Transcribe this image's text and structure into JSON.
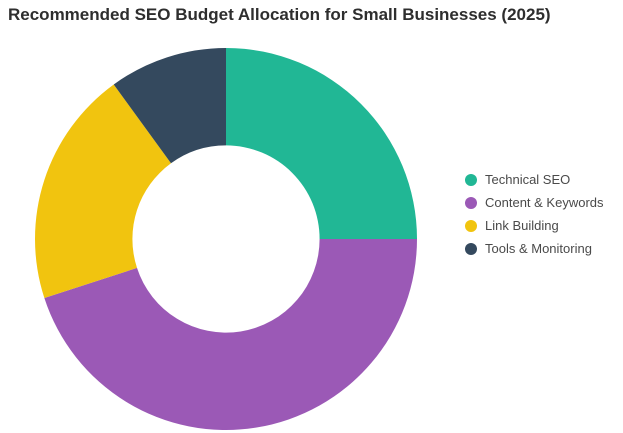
{
  "header": {
    "title": "Recommended SEO Budget Allocation for Small Businesses (2025)",
    "title_color": "#2e2e2e"
  },
  "chart_data": {
    "type": "pie",
    "subtype": "doughnut",
    "title": "Recommended SEO Budget Allocation for Small Businesses (2025)",
    "labels": [
      "Technical SEO",
      "Content & Keywords",
      "Link Building",
      "Tools & Monitoring"
    ],
    "values": [
      25,
      45,
      20,
      10
    ],
    "unit": "percent",
    "colors": [
      "#21b795",
      "#9b59b6",
      "#f1c40f",
      "#34495e"
    ],
    "start_angle_deg": 0,
    "direction": "clockwise",
    "inner_radius_ratio": 0.49,
    "legend_position": "right",
    "legend_text_color": "#4a4a4a",
    "background": "#ffffff"
  }
}
